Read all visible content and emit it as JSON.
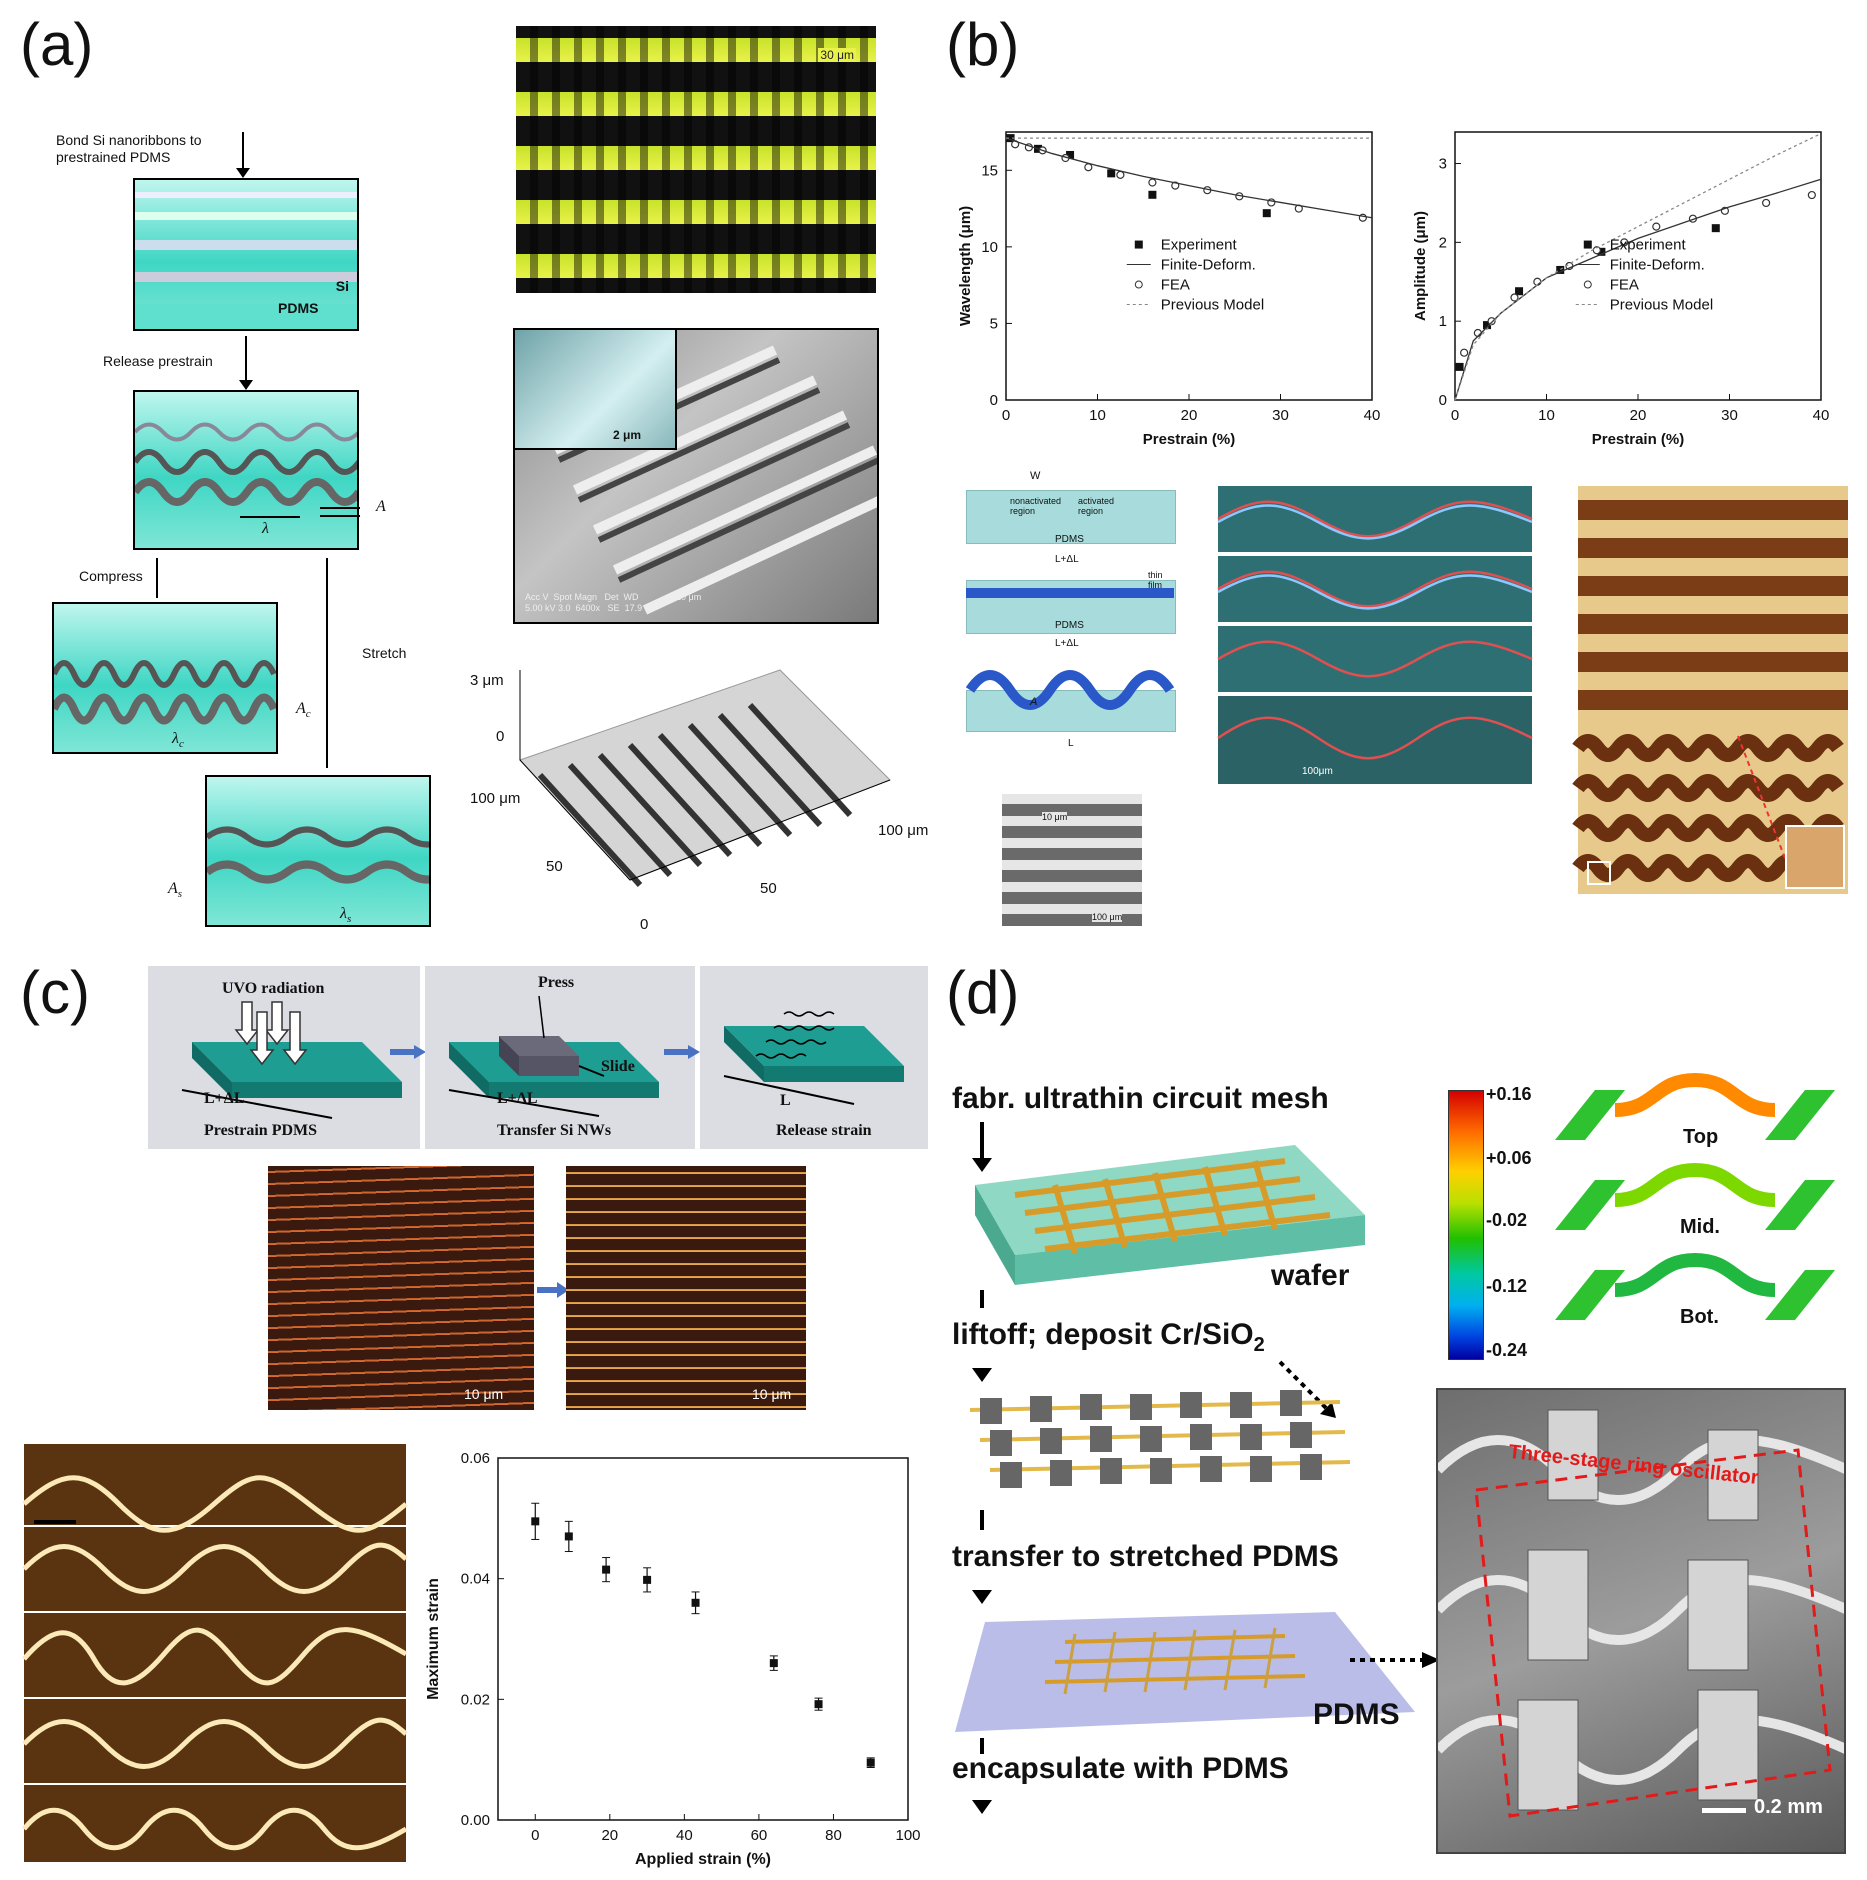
{
  "panels": {
    "a": {
      "letter": "(a)",
      "step1": "Bond Si nanoribbons to\nprestrained PDMS",
      "si": "Si",
      "pdms": "PDMS",
      "step2": "Release prestrain",
      "compress": "Compress",
      "stretch": "Stretch",
      "sym_A": "A",
      "sym_lambda": "λ",
      "sym_Ac": "A",
      "sym_Ac_sub": "c",
      "sym_lc": "λ",
      "sym_lc_sub": "c",
      "sym_As": "A",
      "sym_As_sub": "s",
      "sym_ls": "λ",
      "sym_ls_sub": "s",
      "micro_scale": "30 μm",
      "sem_inset_scale": "2 μm",
      "sem_footer": "Acc V  Spot Magn   Det  WD               10 μm\n5.00 kV 3.0  6400x   SE  17.9",
      "afm_z_top": "3 μm",
      "afm_z_zero": "0",
      "afm_y_label": "100 μm",
      "afm_x1": "50",
      "afm_x2": "50",
      "afm_x_end": "100 μm",
      "afm_zero": "0"
    },
    "b": {
      "letter": "(b)",
      "diag_labels": {
        "w": "W",
        "top_left": "nonactivated\nregion",
        "top_right": "activated\nregion",
        "pdms1": "PDMS",
        "l1": "L+ΔL",
        "thin_film": "thin\nfilm",
        "pdms2": "PDMS",
        "l2": "L+ΔL",
        "A": "A",
        "l3": "L",
        "sem_scale1": "10 μm",
        "sem_scale2": "100 μm"
      },
      "wave_scale": "100μm"
    },
    "c": {
      "letter": "(c)",
      "s1_top": "UVO radiation",
      "s1_len": "L+ΔL",
      "s1_caption": "Prestrain PDMS",
      "s2_top": "Press",
      "s2_slide": "Slide",
      "s2_len": "L+ΔL",
      "s2_caption": "Transfer Si NWs",
      "s3_len": "L",
      "s3_caption": "Release strain",
      "scale1": "10 μm",
      "scale2": "10 μm"
    },
    "d": {
      "letter": "(d)",
      "step1": "fabr. ultrathin circuit mesh",
      "wafer": "wafer",
      "step2": "liftoff; deposit Cr/SiO",
      "step2_sub": "2",
      "step3": "transfer to stretched PDMS",
      "pdms": "PDMS",
      "step4": "encapsulate with PDMS",
      "colorbar": [
        "+0.16",
        "+0.06",
        "-0.02",
        "-0.12",
        "-0.24"
      ],
      "layers": [
        "Top",
        "Mid.",
        "Bot."
      ],
      "sem_label": "Three-stage ring oscillator",
      "sem_scale": "0.2 mm"
    }
  },
  "chart_data": [
    {
      "type": "scatter",
      "id": "wavelength",
      "xlabel": "Prestrain (%)",
      "ylabel": "Wavelength (μm)",
      "xlim": [
        0,
        40
      ],
      "ylim": [
        0,
        17.5
      ],
      "xticks": [
        0,
        10,
        20,
        30,
        40
      ],
      "yticks": [
        0,
        5,
        10,
        15
      ],
      "legend": [
        "Experiment",
        "Finite-Deform.",
        "FEA",
        "Previous Model"
      ],
      "legend_position": "center-right",
      "series": [
        {
          "name": "Experiment",
          "x": [
            0.5,
            3.5,
            7,
            11.5,
            16,
            28.5
          ],
          "y": [
            17.1,
            16.4,
            16.0,
            14.8,
            13.4,
            12.2
          ]
        },
        {
          "name": "FEA",
          "x": [
            1,
            2.5,
            4,
            6.5,
            9,
            12.5,
            16,
            18.5,
            22,
            25.5,
            29,
            32,
            39
          ],
          "y": [
            16.7,
            16.5,
            16.3,
            15.8,
            15.2,
            14.7,
            14.2,
            14.0,
            13.7,
            13.3,
            12.9,
            12.5,
            11.9
          ]
        },
        {
          "name": "Finite-Deform.",
          "x": [
            0,
            5,
            10,
            15,
            20,
            25,
            30,
            35,
            40
          ],
          "y": [
            17.1,
            16.1,
            15.3,
            14.6,
            14.0,
            13.4,
            12.9,
            12.4,
            11.9
          ]
        },
        {
          "name": "Previous Model",
          "x": [
            0,
            40
          ],
          "y": [
            17.1,
            17.1
          ]
        }
      ]
    },
    {
      "type": "scatter",
      "id": "amplitude",
      "xlabel": "Prestrain (%)",
      "ylabel": "Amplitude (μm)",
      "xlim": [
        0,
        40
      ],
      "ylim": [
        0,
        3.4
      ],
      "xticks": [
        0,
        10,
        20,
        30,
        40
      ],
      "yticks": [
        0,
        1,
        2,
        3
      ],
      "legend": [
        "Experiment",
        "Finite-Deform.",
        "FEA",
        "Previous Model"
      ],
      "legend_position": "center-right",
      "series": [
        {
          "name": "Experiment",
          "x": [
            0.5,
            3.5,
            7,
            11.5,
            16,
            28.5
          ],
          "y": [
            0.42,
            0.95,
            1.38,
            1.65,
            1.88,
            2.18
          ]
        },
        {
          "name": "FEA",
          "x": [
            1,
            2.5,
            4,
            6.5,
            9,
            12.5,
            15.5,
            18.5,
            22,
            26,
            29.5,
            34,
            39
          ],
          "y": [
            0.6,
            0.85,
            1.0,
            1.3,
            1.5,
            1.7,
            1.9,
            2.0,
            2.2,
            2.3,
            2.4,
            2.5,
            2.6
          ]
        },
        {
          "name": "Finite-Deform.",
          "x": [
            0,
            2,
            5,
            10,
            15,
            20,
            25,
            30,
            35,
            40
          ],
          "y": [
            0,
            0.75,
            1.1,
            1.55,
            1.8,
            2.05,
            2.25,
            2.45,
            2.62,
            2.8
          ]
        },
        {
          "name": "Previous Model",
          "x": [
            0,
            2,
            5,
            10,
            15,
            20,
            25,
            30,
            35,
            40
          ],
          "y": [
            0,
            0.7,
            1.1,
            1.55,
            1.9,
            2.2,
            2.5,
            2.8,
            3.1,
            3.38
          ]
        }
      ]
    },
    {
      "type": "scatter",
      "id": "max-strain",
      "xlabel": "Applied strain (%)",
      "ylabel": "Maximum strain",
      "xlim": [
        -10,
        100
      ],
      "ylim": [
        0,
        0.06
      ],
      "xticks": [
        0,
        20,
        40,
        60,
        80,
        100
      ],
      "yticks": [
        0.0,
        0.02,
        0.04,
        0.06
      ],
      "series": [
        {
          "name": "",
          "x": [
            0,
            9,
            19,
            30,
            43,
            64,
            76,
            90
          ],
          "y": [
            0.0495,
            0.047,
            0.0415,
            0.0398,
            0.036,
            0.026,
            0.0192,
            0.0095
          ],
          "err": [
            0.003,
            0.0025,
            0.002,
            0.002,
            0.0018,
            0.0012,
            0.001,
            0.0008
          ]
        }
      ]
    }
  ]
}
